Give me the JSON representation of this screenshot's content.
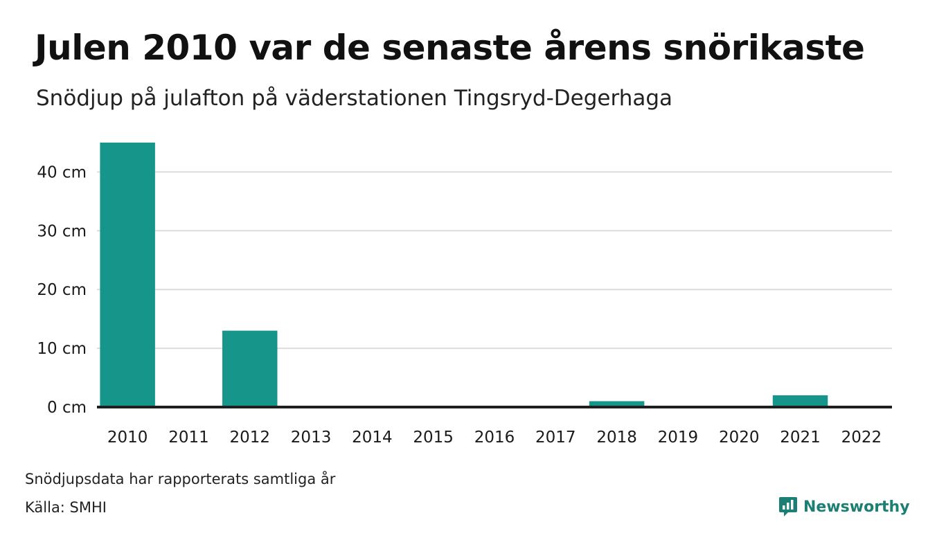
{
  "header": {
    "title": "Julen 2010 var de senaste årens snörikaste",
    "subtitle": "Snödjup på julafton på väderstationen Tingsryd-Degerhaga"
  },
  "footer": {
    "note": "Snödjupsdata har rapporterats samtliga år",
    "source": "Källa: SMHI",
    "brand": "Newsworthy",
    "brand_icon": "chart-speech-bubble-icon"
  },
  "colors": {
    "bar": "#16968a",
    "axis": "#1f1f1f",
    "grid": "#dcdcdc",
    "brand": "#1b7f73"
  },
  "chart_data": {
    "type": "bar",
    "categories": [
      "2010",
      "2011",
      "2012",
      "2013",
      "2014",
      "2015",
      "2016",
      "2017",
      "2018",
      "2019",
      "2020",
      "2021",
      "2022"
    ],
    "values": [
      45,
      0,
      13,
      0,
      0,
      0,
      0,
      0,
      1,
      0,
      0,
      2,
      0
    ],
    "title": "Julen 2010 var de senaste årens snörikaste",
    "subtitle": "Snödjup på julafton på väderstationen Tingsryd-Degerhaga",
    "ylim": [
      0,
      45
    ],
    "yticks": [
      0,
      10,
      20,
      30,
      40
    ],
    "ytick_labels": [
      "0 cm",
      "10 cm",
      "20 cm",
      "30 cm",
      "40 cm"
    ],
    "grid": true,
    "legend": "none"
  }
}
